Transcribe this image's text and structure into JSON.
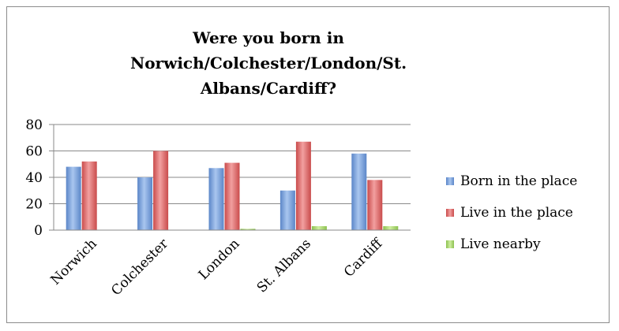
{
  "chart_data": {
    "type": "bar",
    "title_lines": [
      "Were you born in",
      "Norwich/Colchester/London/St.",
      "Albans/Cardiff?"
    ],
    "categories": [
      "Norwich",
      "Colchester",
      "London",
      "St. Albans",
      "Cardiff"
    ],
    "series": [
      {
        "name": "Born in the place",
        "values": [
          48,
          40,
          47,
          30,
          58
        ],
        "color": "#6f9bd8"
      },
      {
        "name": "Live in the place",
        "values": [
          52,
          60,
          51,
          67,
          38
        ],
        "color": "#e06666"
      },
      {
        "name": "Live nearby",
        "values": [
          0,
          0,
          1,
          3,
          3
        ],
        "color": "#a9d96a"
      }
    ],
    "ylim": [
      0,
      80
    ],
    "yticks": [
      "0",
      "20",
      "40",
      "60",
      "80"
    ],
    "grid": true,
    "legend_position": "right",
    "xlabel": "",
    "ylabel": ""
  }
}
